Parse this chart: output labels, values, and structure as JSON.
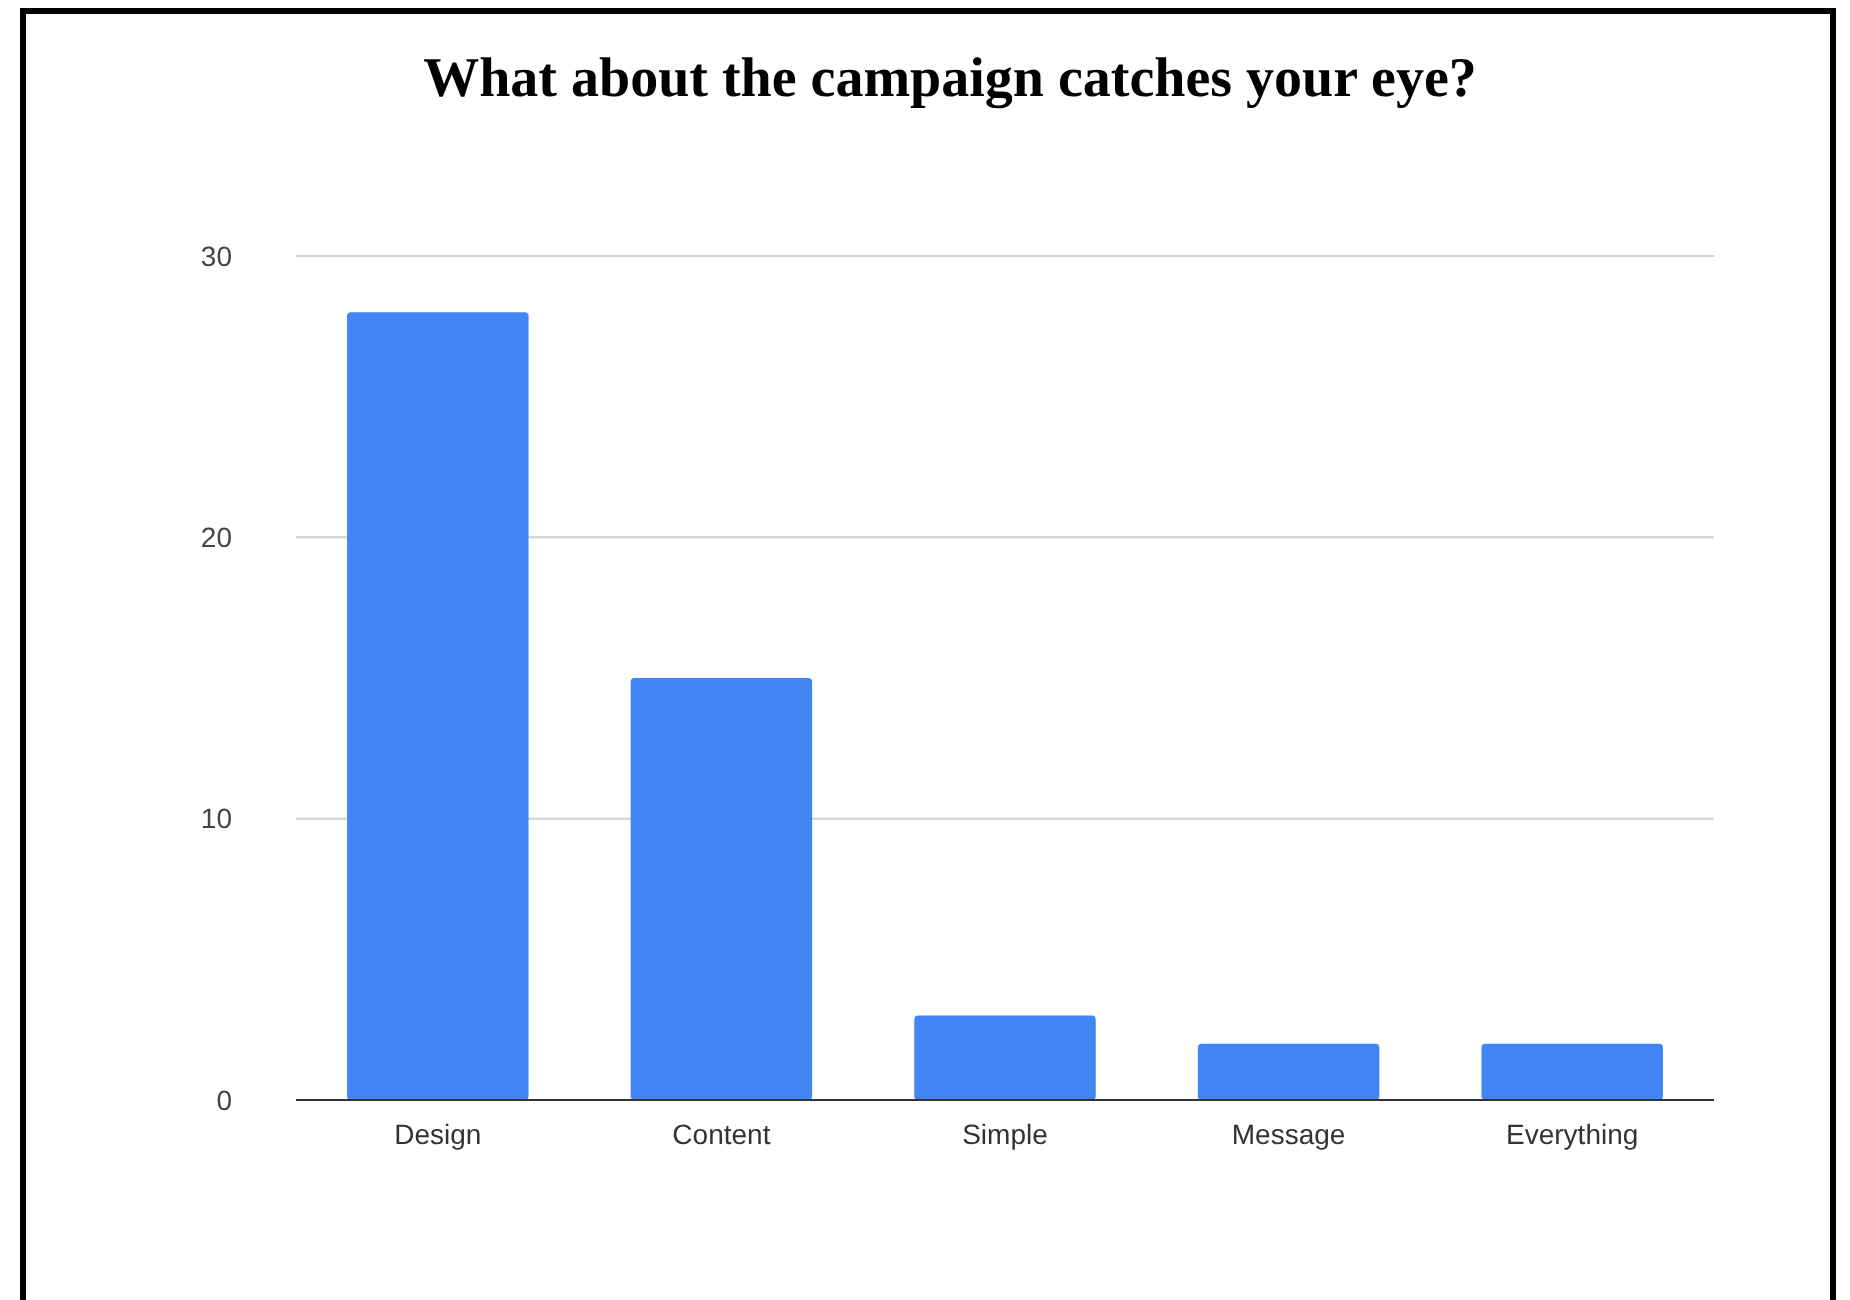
{
  "chart_data": {
    "type": "bar",
    "title": "What about the campaign catches your eye?",
    "categories": [
      "Design",
      "Content",
      "Simple",
      "Message",
      "Everything"
    ],
    "values": [
      28,
      15,
      3,
      2,
      2
    ],
    "color": "#4285f4",
    "ylim": [
      0,
      30
    ],
    "yticks": [
      0,
      10,
      20,
      30
    ],
    "grid": "y"
  }
}
